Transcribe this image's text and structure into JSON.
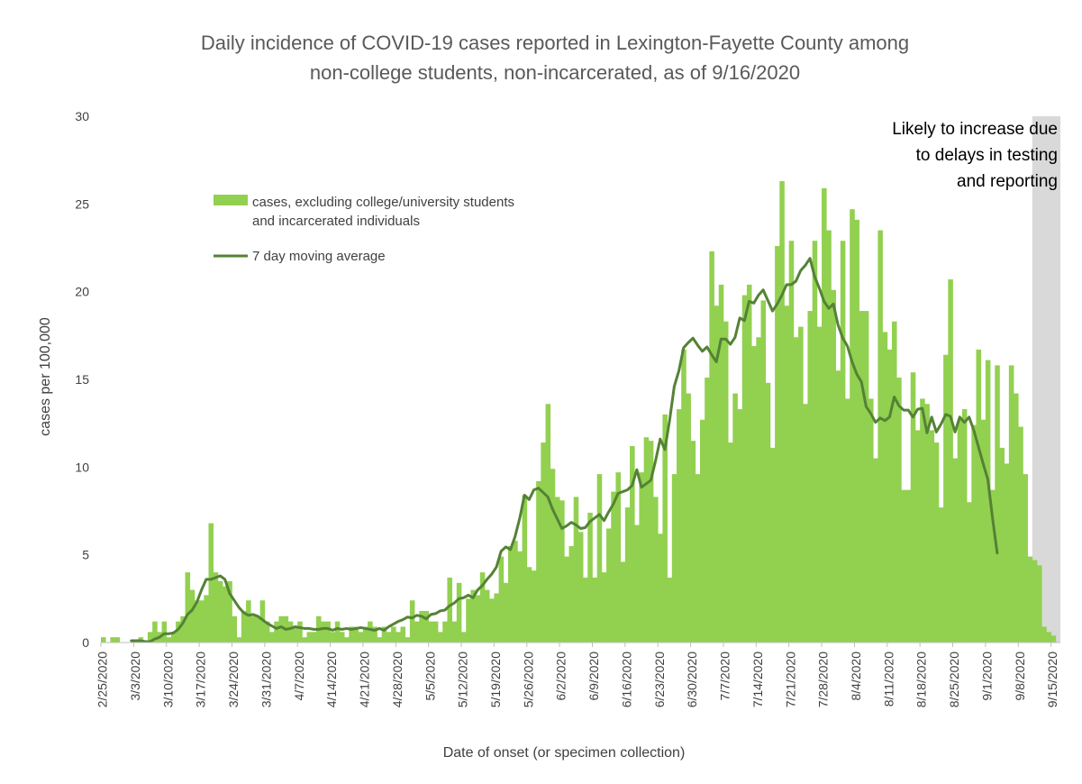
{
  "chart_data": {
    "type": "bar",
    "title_lines": [
      "Daily incidence of COVID-19 cases reported in Lexington-Fayette County among",
      "non-college students, non-incarcerated, as of 9/16/2020"
    ],
    "xlabel": "Date of onset (or specimen collection)",
    "ylabel": "cases per 100,000",
    "ylim": [
      0,
      30
    ],
    "yticks": [
      "0",
      "5",
      "10",
      "15",
      "20",
      "25",
      "30"
    ],
    "x_start_date": "2/25/2020",
    "x_end_date": "9/16/2020",
    "xticks": [
      "2/25/2020",
      "3/3/2020",
      "3/10/2020",
      "3/17/2020",
      "3/24/2020",
      "3/31/2020",
      "4/7/2020",
      "4/14/2020",
      "4/21/2020",
      "4/28/2020",
      "5/5/2020",
      "5/12/2020",
      "5/19/2020",
      "5/26/2020",
      "6/2/2020",
      "6/9/2020",
      "6/16/2020",
      "6/23/2020",
      "6/30/2020",
      "7/7/2020",
      "7/14/2020",
      "7/21/2020",
      "7/28/2020",
      "8/4/2020",
      "8/11/2020",
      "8/18/2020",
      "8/25/2020",
      "9/1/2020",
      "9/8/2020",
      "9/15/2020"
    ],
    "grid": false,
    "legend_position": "upper-left",
    "series": [
      {
        "name": "cases, excluding college/university students and incarcerated individuals",
        "kind": "bar",
        "color": "#92d050",
        "values": [
          0.3,
          0,
          0.3,
          0.3,
          0,
          0,
          0,
          0,
          0.3,
          0,
          0.6,
          1.2,
          0.6,
          1.2,
          0.3,
          0.6,
          1.2,
          1.5,
          4,
          3,
          2.4,
          2.4,
          2.7,
          6.8,
          4,
          3.5,
          3.2,
          3.5,
          1.5,
          0.3,
          1.8,
          2.4,
          1.5,
          1.5,
          2.4,
          1.2,
          0.6,
          1.2,
          1.5,
          1.5,
          1.2,
          0.9,
          1.2,
          0.3,
          0.6,
          0.6,
          1.5,
          1.2,
          1.2,
          0.6,
          1.2,
          0.6,
          0.3,
          0.9,
          0.9,
          0.6,
          0.9,
          1.2,
          0.9,
          0.3,
          0.9,
          0.6,
          0.9,
          0.6,
          0.9,
          0.3,
          2.4,
          1.2,
          1.8,
          1.8,
          1.2,
          1.2,
          0.6,
          1.2,
          3.7,
          1.2,
          3.4,
          0.6,
          2.5,
          3,
          2.7,
          4,
          3,
          2.5,
          2.8,
          4.9,
          3.4,
          5.5,
          5.8,
          5.2,
          8.4,
          4.3,
          4.1,
          9.2,
          11.4,
          13.6,
          9.9,
          8.3,
          8.1,
          4.9,
          5.5,
          8.3,
          6.3,
          3.7,
          7.4,
          3.7,
          9.6,
          4,
          6.5,
          8.6,
          9.7,
          4.6,
          7.7,
          11.2,
          6.7,
          9.7,
          11.7,
          11.5,
          8.3,
          6.2,
          13,
          3.7,
          9.6,
          13.3,
          16.7,
          14.2,
          11.5,
          9.6,
          12.7,
          15.1,
          22.3,
          19.2,
          20.4,
          18.3,
          11.4,
          14.2,
          13.3,
          19.8,
          20.4,
          16.9,
          17.4,
          19.5,
          14.8,
          11.1,
          22.6,
          26.3,
          19.2,
          22.9,
          17.4,
          18,
          13.6,
          18.9,
          22.9,
          18,
          25.9,
          23.5,
          20.1,
          15.5,
          22.9,
          13.9,
          24.7,
          24.1,
          18.9,
          18.9,
          13.9,
          10.5,
          23.5,
          17.7,
          16.7,
          18.3,
          15.1,
          8.7,
          8.7,
          15.4,
          12.1,
          13.9,
          13.6,
          12.1,
          11.4,
          7.7,
          16.4,
          20.7,
          10.5,
          12.7,
          13.3,
          8,
          12.4,
          16.7,
          12.7,
          16.1,
          8.7,
          15.8,
          11.1,
          10.2,
          15.8,
          14.2,
          12.3,
          9.6,
          4.9,
          4.7,
          4.4,
          0.9,
          0.6,
          0.4
        ]
      },
      {
        "name": "7 day moving average",
        "kind": "line",
        "color": "#548235",
        "values": [
          null,
          null,
          null,
          null,
          null,
          null,
          0.1,
          0.1,
          0.1,
          0.05,
          0.05,
          0.2,
          0.3,
          0.5,
          0.5,
          0.55,
          0.75,
          1.1,
          1.6,
          1.85,
          2.3,
          3,
          3.6,
          3.6,
          3.7,
          3.8,
          3.6,
          2.8,
          2.4,
          2,
          1.7,
          1.55,
          1.6,
          1.5,
          1.3,
          1.1,
          0.95,
          0.8,
          0.9,
          0.75,
          0.8,
          0.9,
          0.85,
          0.8,
          0.8,
          0.75,
          0.75,
          0.8,
          0.8,
          0.7,
          0.8,
          0.75,
          0.8,
          0.75,
          0.8,
          0.85,
          0.8,
          0.75,
          0.7,
          0.8,
          0.7,
          0.9,
          1.05,
          1.2,
          1.3,
          1.45,
          1.4,
          1.55,
          1.5,
          1.35,
          1.6,
          1.65,
          1.8,
          1.85,
          2.1,
          2.25,
          2.5,
          2.55,
          2.7,
          2.55,
          3,
          3.25,
          3.6,
          3.9,
          4.3,
          5.2,
          5.45,
          5.3,
          6.05,
          7.1,
          8.4,
          8.15,
          8.7,
          8.8,
          8.55,
          8.3,
          7.6,
          7.05,
          6.5,
          6.65,
          6.85,
          6.7,
          6.5,
          6.55,
          6.9,
          7.1,
          7.3,
          6.95,
          7.45,
          7.9,
          8.5,
          8.6,
          8.7,
          8.95,
          9.85,
          8.85,
          9.05,
          9.25,
          10.35,
          11.6,
          11,
          12.65,
          14.6,
          15.5,
          16.8,
          17.1,
          17.35,
          16.95,
          16.6,
          16.85,
          16.4,
          16,
          17.3,
          17.3,
          17,
          17.4,
          18.5,
          18.35,
          19.45,
          19.35,
          19.8,
          20.1,
          19.5,
          18.9,
          19.3,
          19.8,
          20.4,
          20.4,
          20.6,
          21.2,
          21.5,
          21.9,
          20.85,
          20.2,
          19.45,
          19.05,
          19.3,
          18.1,
          17.35,
          16.9,
          16,
          15.3,
          14.85,
          13.45,
          13.05,
          12.55,
          12.8,
          12.65,
          12.85,
          14,
          13.5,
          13.25,
          13.25,
          12.85,
          13.3,
          13.35,
          11.95,
          12.85,
          12,
          12.45,
          13,
          12.9,
          12,
          12.85,
          12.55,
          12.85,
          12.1,
          11.15,
          10.2,
          9.3,
          7.1,
          5.1
        ]
      }
    ],
    "shaded_region": {
      "from": "9/11/2020",
      "to": "9/16/2020",
      "color": "#d9d9d9"
    },
    "annotation_lines": [
      "Likely to increase due",
      "to delays in testing",
      "and reporting"
    ],
    "legend": [
      {
        "label_lines": [
          "cases, excluding college/university students",
          "and incarcerated individuals"
        ],
        "kind": "bar",
        "color": "#92d050"
      },
      {
        "label_lines": [
          "7 day moving average"
        ],
        "kind": "line",
        "color": "#548235"
      }
    ]
  }
}
